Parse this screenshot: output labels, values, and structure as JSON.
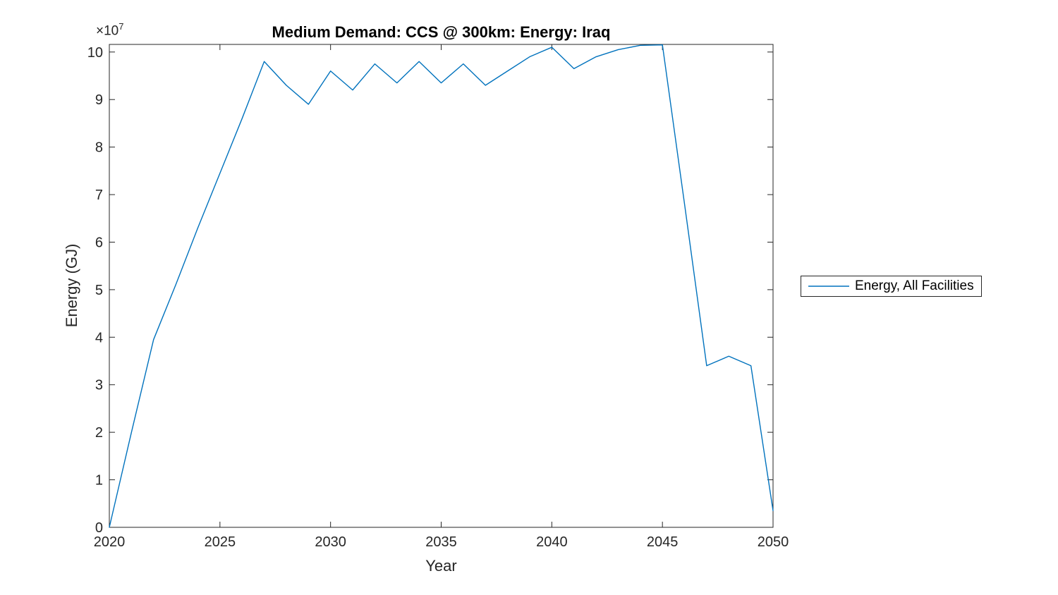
{
  "figure": {
    "background": "#ffffff",
    "axis_color": "#262626",
    "title_color": "#000000"
  },
  "chart_data": {
    "type": "line",
    "title": "Medium Demand: CCS @ 300km: Energy: Iraq",
    "xlabel": "Year",
    "ylabel": "Energy (GJ)",
    "y_multiplier_base": "×10",
    "y_multiplier_exp": "7",
    "units": "GJ, values in multiples of 1e7",
    "x": [
      2020,
      2021,
      2022,
      2023,
      2024,
      2025,
      2026,
      2027,
      2028,
      2029,
      2030,
      2031,
      2032,
      2033,
      2034,
      2035,
      2036,
      2037,
      2038,
      2039,
      2040,
      2041,
      2042,
      2043,
      2044,
      2045,
      2046,
      2047,
      2048,
      2049,
      2050
    ],
    "series": [
      {
        "name": "Energy, All Facilities",
        "color": "#0072BD",
        "values": [
          0,
          2.0,
          3.95,
          5.1,
          6.3,
          7.45,
          8.6,
          9.8,
          9.3,
          8.9,
          9.6,
          9.2,
          9.75,
          9.35,
          9.8,
          9.35,
          9.75,
          9.3,
          9.6,
          9.9,
          10.1,
          9.65,
          9.9,
          10.05,
          10.14,
          10.15,
          6.8,
          3.4,
          3.6,
          3.4,
          0.35
        ]
      }
    ],
    "xlim": [
      2020,
      2050
    ],
    "ylim": [
      0,
      10.16
    ],
    "x_ticks": [
      "2020",
      "2025",
      "2030",
      "2035",
      "2040",
      "2045",
      "2050"
    ],
    "x_tick_values": [
      2020,
      2025,
      2030,
      2035,
      2040,
      2045,
      2050
    ],
    "y_ticks": [
      "0",
      "1",
      "2",
      "3",
      "4",
      "5",
      "6",
      "7",
      "8",
      "9",
      "10"
    ],
    "y_tick_values": [
      0,
      1,
      2,
      3,
      4,
      5,
      6,
      7,
      8,
      9,
      10
    ],
    "grid": false,
    "box": true,
    "legend_position": "right-outside"
  },
  "legend": {
    "items": [
      {
        "label": "Energy, All Facilities",
        "color": "#0072BD"
      }
    ]
  }
}
